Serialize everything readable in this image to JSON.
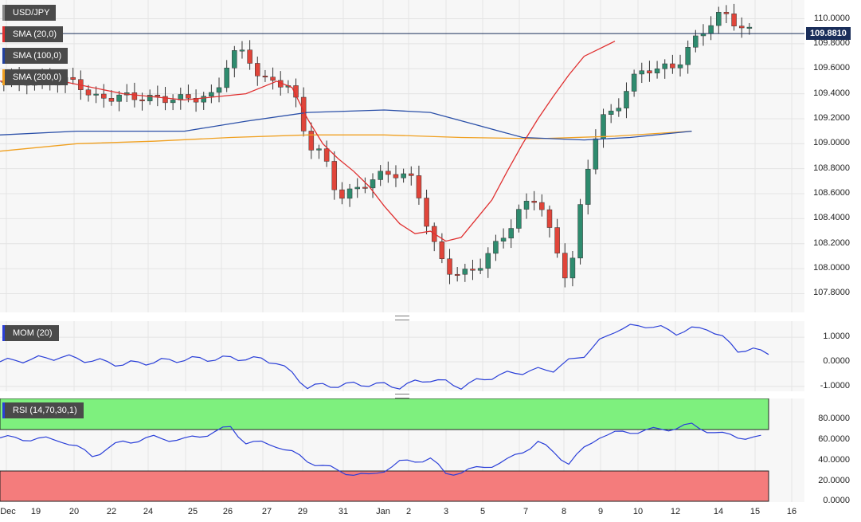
{
  "panels": {
    "main": {
      "badges": [
        {
          "label": "USD/JPY",
          "color": "#444444"
        },
        {
          "label": "SMA (20,0)",
          "color": "#e03030"
        },
        {
          "label": "SMA (100,0)",
          "color": "#2040a0"
        },
        {
          "label": "SMA (200,0)",
          "color": "#f0a020"
        }
      ],
      "price_label": "109.8810",
      "yticks": [
        "110.0000",
        "109.8000",
        "109.6000",
        "109.4000",
        "109.2000",
        "109.0000",
        "108.8000",
        "108.6000",
        "108.4000",
        "108.2000",
        "108.0000",
        "107.8000"
      ]
    },
    "mom": {
      "badge": "MOM (20)",
      "yticks": [
        "1.0000",
        "0.0000",
        "-1.0000"
      ]
    },
    "rsi": {
      "badge": "RSI (14,70,30,1)",
      "yticks": [
        "80.0000",
        "60.0000",
        "40.0000",
        "20.0000",
        "0.0000"
      ]
    }
  },
  "x_labels": [
    "Dec",
    "19",
    "20",
    "22",
    "24",
    "25",
    "26",
    "27",
    "29",
    "31",
    "Jan",
    "2",
    "3",
    "5",
    "7",
    "8",
    "9",
    "10",
    "12",
    "14",
    "15",
    "16"
  ],
  "colors": {
    "up": "#2e8b6e",
    "down": "#e0453a",
    "sma20": "#e03030",
    "sma100": "#2a4fa8",
    "sma200": "#f0a020",
    "mom": "#2a3fd8",
    "rsi": "#2a3fd8",
    "overbought": "#7ef07e",
    "oversold": "#f47c7c"
  },
  "chart_data": {
    "type": "line",
    "symbol": "USD/JPY",
    "last_price": 109.881,
    "close_path": [
      [
        0,
        109.5
      ],
      [
        3,
        109.5
      ],
      [
        5,
        109.5
      ],
      [
        6,
        109.36
      ],
      [
        8,
        109.38
      ],
      [
        10,
        109.36
      ],
      [
        12,
        109.36
      ],
      [
        14,
        109.38
      ],
      [
        15,
        109.72
      ],
      [
        16,
        109.73
      ],
      [
        17,
        109.5
      ],
      [
        18,
        109.5
      ],
      [
        19,
        109.45
      ],
      [
        20,
        109.0
      ],
      [
        21,
        108.92
      ],
      [
        22,
        108.57
      ],
      [
        23,
        108.62
      ],
      [
        24,
        108.7
      ],
      [
        25,
        108.76
      ],
      [
        26,
        108.76
      ],
      [
        27,
        108.7
      ],
      [
        28,
        108.25
      ],
      [
        29,
        108.0
      ],
      [
        30,
        107.95
      ],
      [
        31,
        108.0
      ],
      [
        32,
        108.15
      ],
      [
        33,
        108.3
      ],
      [
        34,
        108.5
      ],
      [
        35,
        108.58
      ],
      [
        36,
        108.2
      ],
      [
        37,
        107.88
      ],
      [
        38,
        108.68
      ],
      [
        39,
        109.2
      ],
      [
        40,
        109.25
      ],
      [
        41,
        109.5
      ],
      [
        42,
        109.6
      ],
      [
        43,
        109.6
      ],
      [
        44,
        109.62
      ],
      [
        45,
        109.8
      ],
      [
        46,
        109.94
      ],
      [
        47,
        110.05
      ],
      [
        48,
        109.95
      ],
      [
        49,
        109.88
      ]
    ],
    "sma20_path": [
      [
        0,
        109.5
      ],
      [
        4,
        109.5
      ],
      [
        8,
        109.4
      ],
      [
        12,
        109.35
      ],
      [
        16,
        109.4
      ],
      [
        17,
        109.45
      ],
      [
        18,
        109.5
      ],
      [
        19,
        109.45
      ],
      [
        20,
        109.2
      ],
      [
        21,
        109.0
      ],
      [
        22,
        108.88
      ],
      [
        23,
        108.78
      ],
      [
        24,
        108.66
      ],
      [
        25,
        108.5
      ],
      [
        26,
        108.36
      ],
      [
        27,
        108.28
      ],
      [
        28,
        108.3
      ],
      [
        29,
        108.22
      ],
      [
        30,
        108.25
      ],
      [
        31,
        108.4
      ],
      [
        32,
        108.55
      ],
      [
        33,
        108.78
      ],
      [
        34,
        109.0
      ],
      [
        35,
        109.2
      ],
      [
        36,
        109.38
      ],
      [
        37,
        109.55
      ],
      [
        38,
        109.7
      ],
      [
        39,
        109.76
      ],
      [
        40,
        109.82
      ]
    ],
    "sma100_path": [
      [
        0,
        109.07
      ],
      [
        5,
        109.1
      ],
      [
        12,
        109.1
      ],
      [
        16,
        109.18
      ],
      [
        20,
        109.25
      ],
      [
        25,
        109.27
      ],
      [
        28,
        109.25
      ],
      [
        31,
        109.15
      ],
      [
        34,
        109.05
      ],
      [
        38,
        109.03
      ],
      [
        41,
        109.05
      ],
      [
        45,
        109.1
      ]
    ],
    "sma200_path": [
      [
        0,
        108.94
      ],
      [
        5,
        109.0
      ],
      [
        10,
        109.02
      ],
      [
        15,
        109.05
      ],
      [
        20,
        109.07
      ],
      [
        25,
        109.07
      ],
      [
        30,
        109.05
      ],
      [
        35,
        109.04
      ],
      [
        40,
        109.06
      ],
      [
        45,
        109.1
      ]
    ],
    "mom_path": [
      [
        0,
        0.0
      ],
      [
        4,
        0.2
      ],
      [
        8,
        -0.1
      ],
      [
        12,
        0.1
      ],
      [
        16,
        0.15
      ],
      [
        18,
        0.0
      ],
      [
        20,
        -1.0
      ],
      [
        24,
        -0.9
      ],
      [
        26,
        -1.0
      ],
      [
        28,
        -0.7
      ],
      [
        30,
        -1.0
      ],
      [
        32,
        -0.6
      ],
      [
        34,
        -0.4
      ],
      [
        36,
        -0.3
      ],
      [
        38,
        0.3
      ],
      [
        40,
        1.3
      ],
      [
        42,
        1.5
      ],
      [
        44,
        1.2
      ],
      [
        46,
        1.4
      ],
      [
        48,
        0.5
      ],
      [
        50,
        0.4
      ]
    ],
    "rsi_path": [
      [
        0,
        62
      ],
      [
        4,
        60
      ],
      [
        6,
        45
      ],
      [
        8,
        58
      ],
      [
        10,
        62
      ],
      [
        12,
        60
      ],
      [
        14,
        68
      ],
      [
        15,
        72
      ],
      [
        16,
        58
      ],
      [
        18,
        55
      ],
      [
        20,
        40
      ],
      [
        22,
        30
      ],
      [
        24,
        25
      ],
      [
        26,
        38
      ],
      [
        28,
        42
      ],
      [
        29,
        27
      ],
      [
        31,
        32
      ],
      [
        33,
        40
      ],
      [
        35,
        58
      ],
      [
        37,
        38
      ],
      [
        39,
        64
      ],
      [
        41,
        68
      ],
      [
        43,
        70
      ],
      [
        45,
        74
      ],
      [
        47,
        65
      ],
      [
        49,
        62
      ]
    ],
    "rsi_levels": [
      70,
      30
    ],
    "ylim_main": [
      107.65,
      110.15
    ],
    "ylim_mom": [
      -1.2,
      1.65
    ],
    "ylim_rsi": [
      0,
      100
    ]
  }
}
